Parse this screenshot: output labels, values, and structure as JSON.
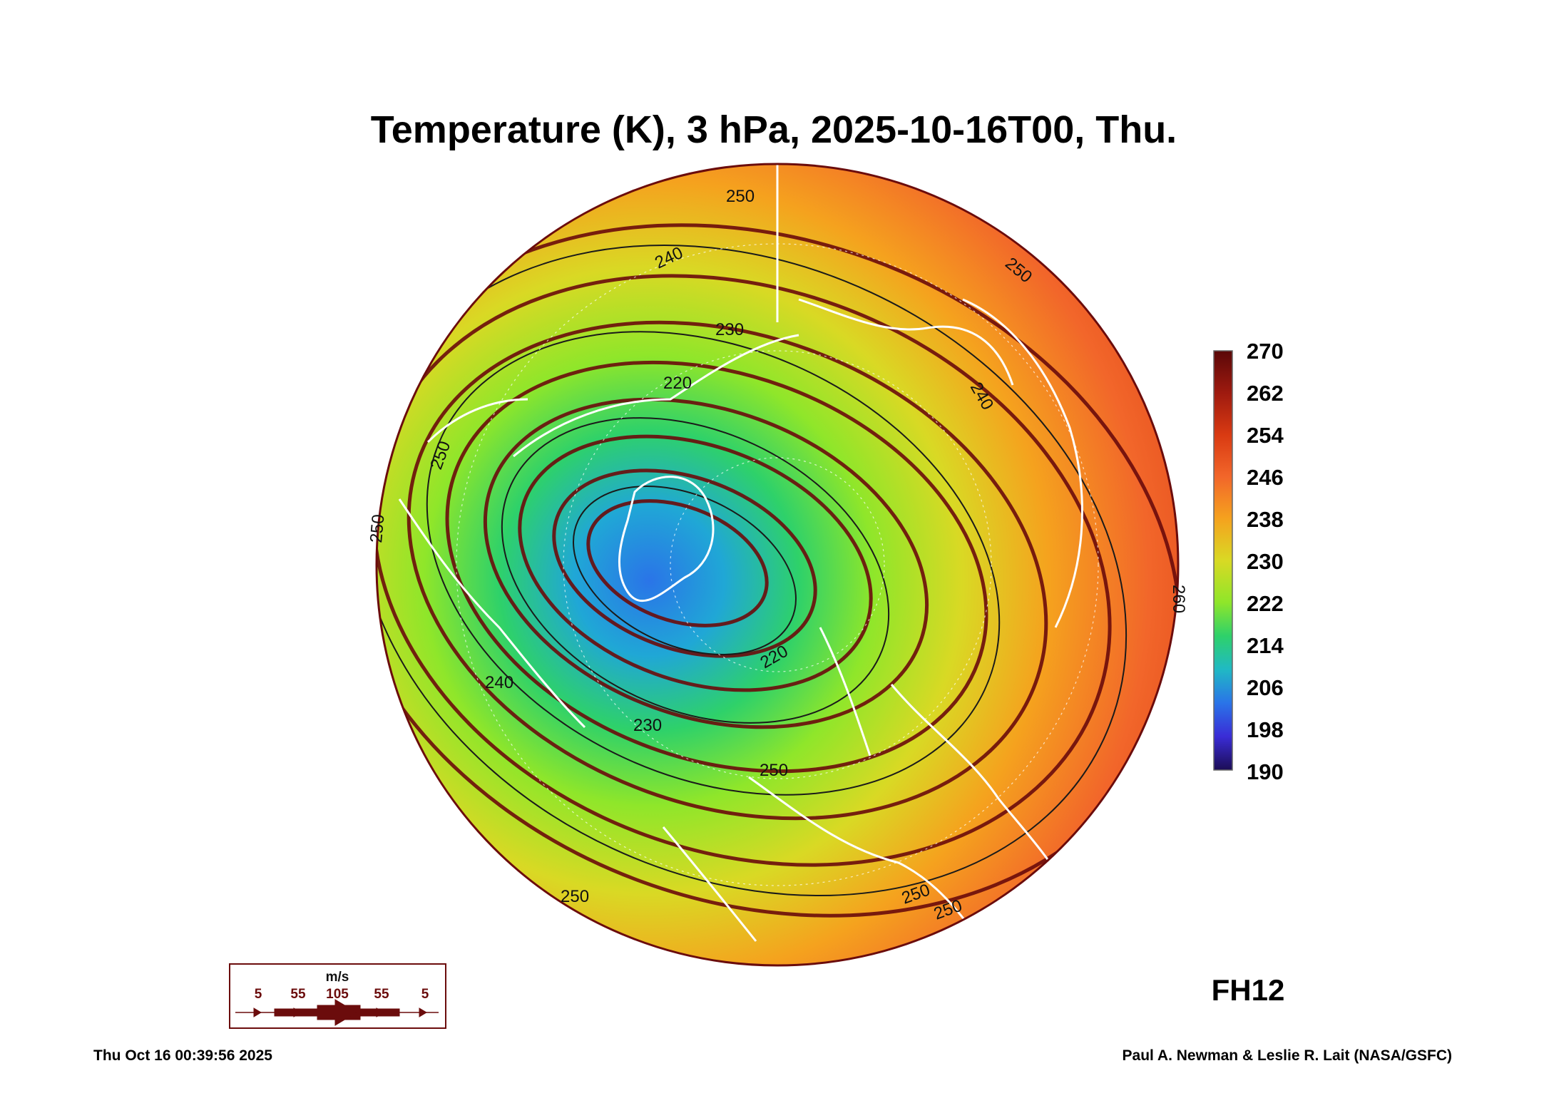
{
  "title": "Temperature (K), 3 hPa, 2025-10-16T00, Thu.",
  "colorbar": {
    "ticks": [
      "270",
      "262",
      "254",
      "246",
      "238",
      "230",
      "222",
      "214",
      "206",
      "198",
      "190"
    ],
    "colors": [
      "#6b0c0c",
      "#9e1a0f",
      "#d93a12",
      "#f2662a",
      "#f5a21e",
      "#d9d924",
      "#8fe62a",
      "#2ed16a",
      "#20b9c4",
      "#2a74e8",
      "#3a2cd6",
      "#24116b"
    ]
  },
  "contour_labels": [
    "250",
    "240",
    "230",
    "220",
    "240",
    "250",
    "220",
    "230",
    "240",
    "250",
    "250",
    "250",
    "250",
    "250",
    "250",
    "260"
  ],
  "wind_legend": {
    "unit": "m/s",
    "values": [
      "5",
      "55",
      "105",
      "55",
      "5"
    ],
    "color": "#6b0c0c"
  },
  "forecast_hour": "FH12",
  "footer": {
    "timestamp": "Thu Oct 16 00:39:56 2025",
    "credit": "Paul A. Newman & Leslie R. Lait (NASA/GSFC)"
  }
}
